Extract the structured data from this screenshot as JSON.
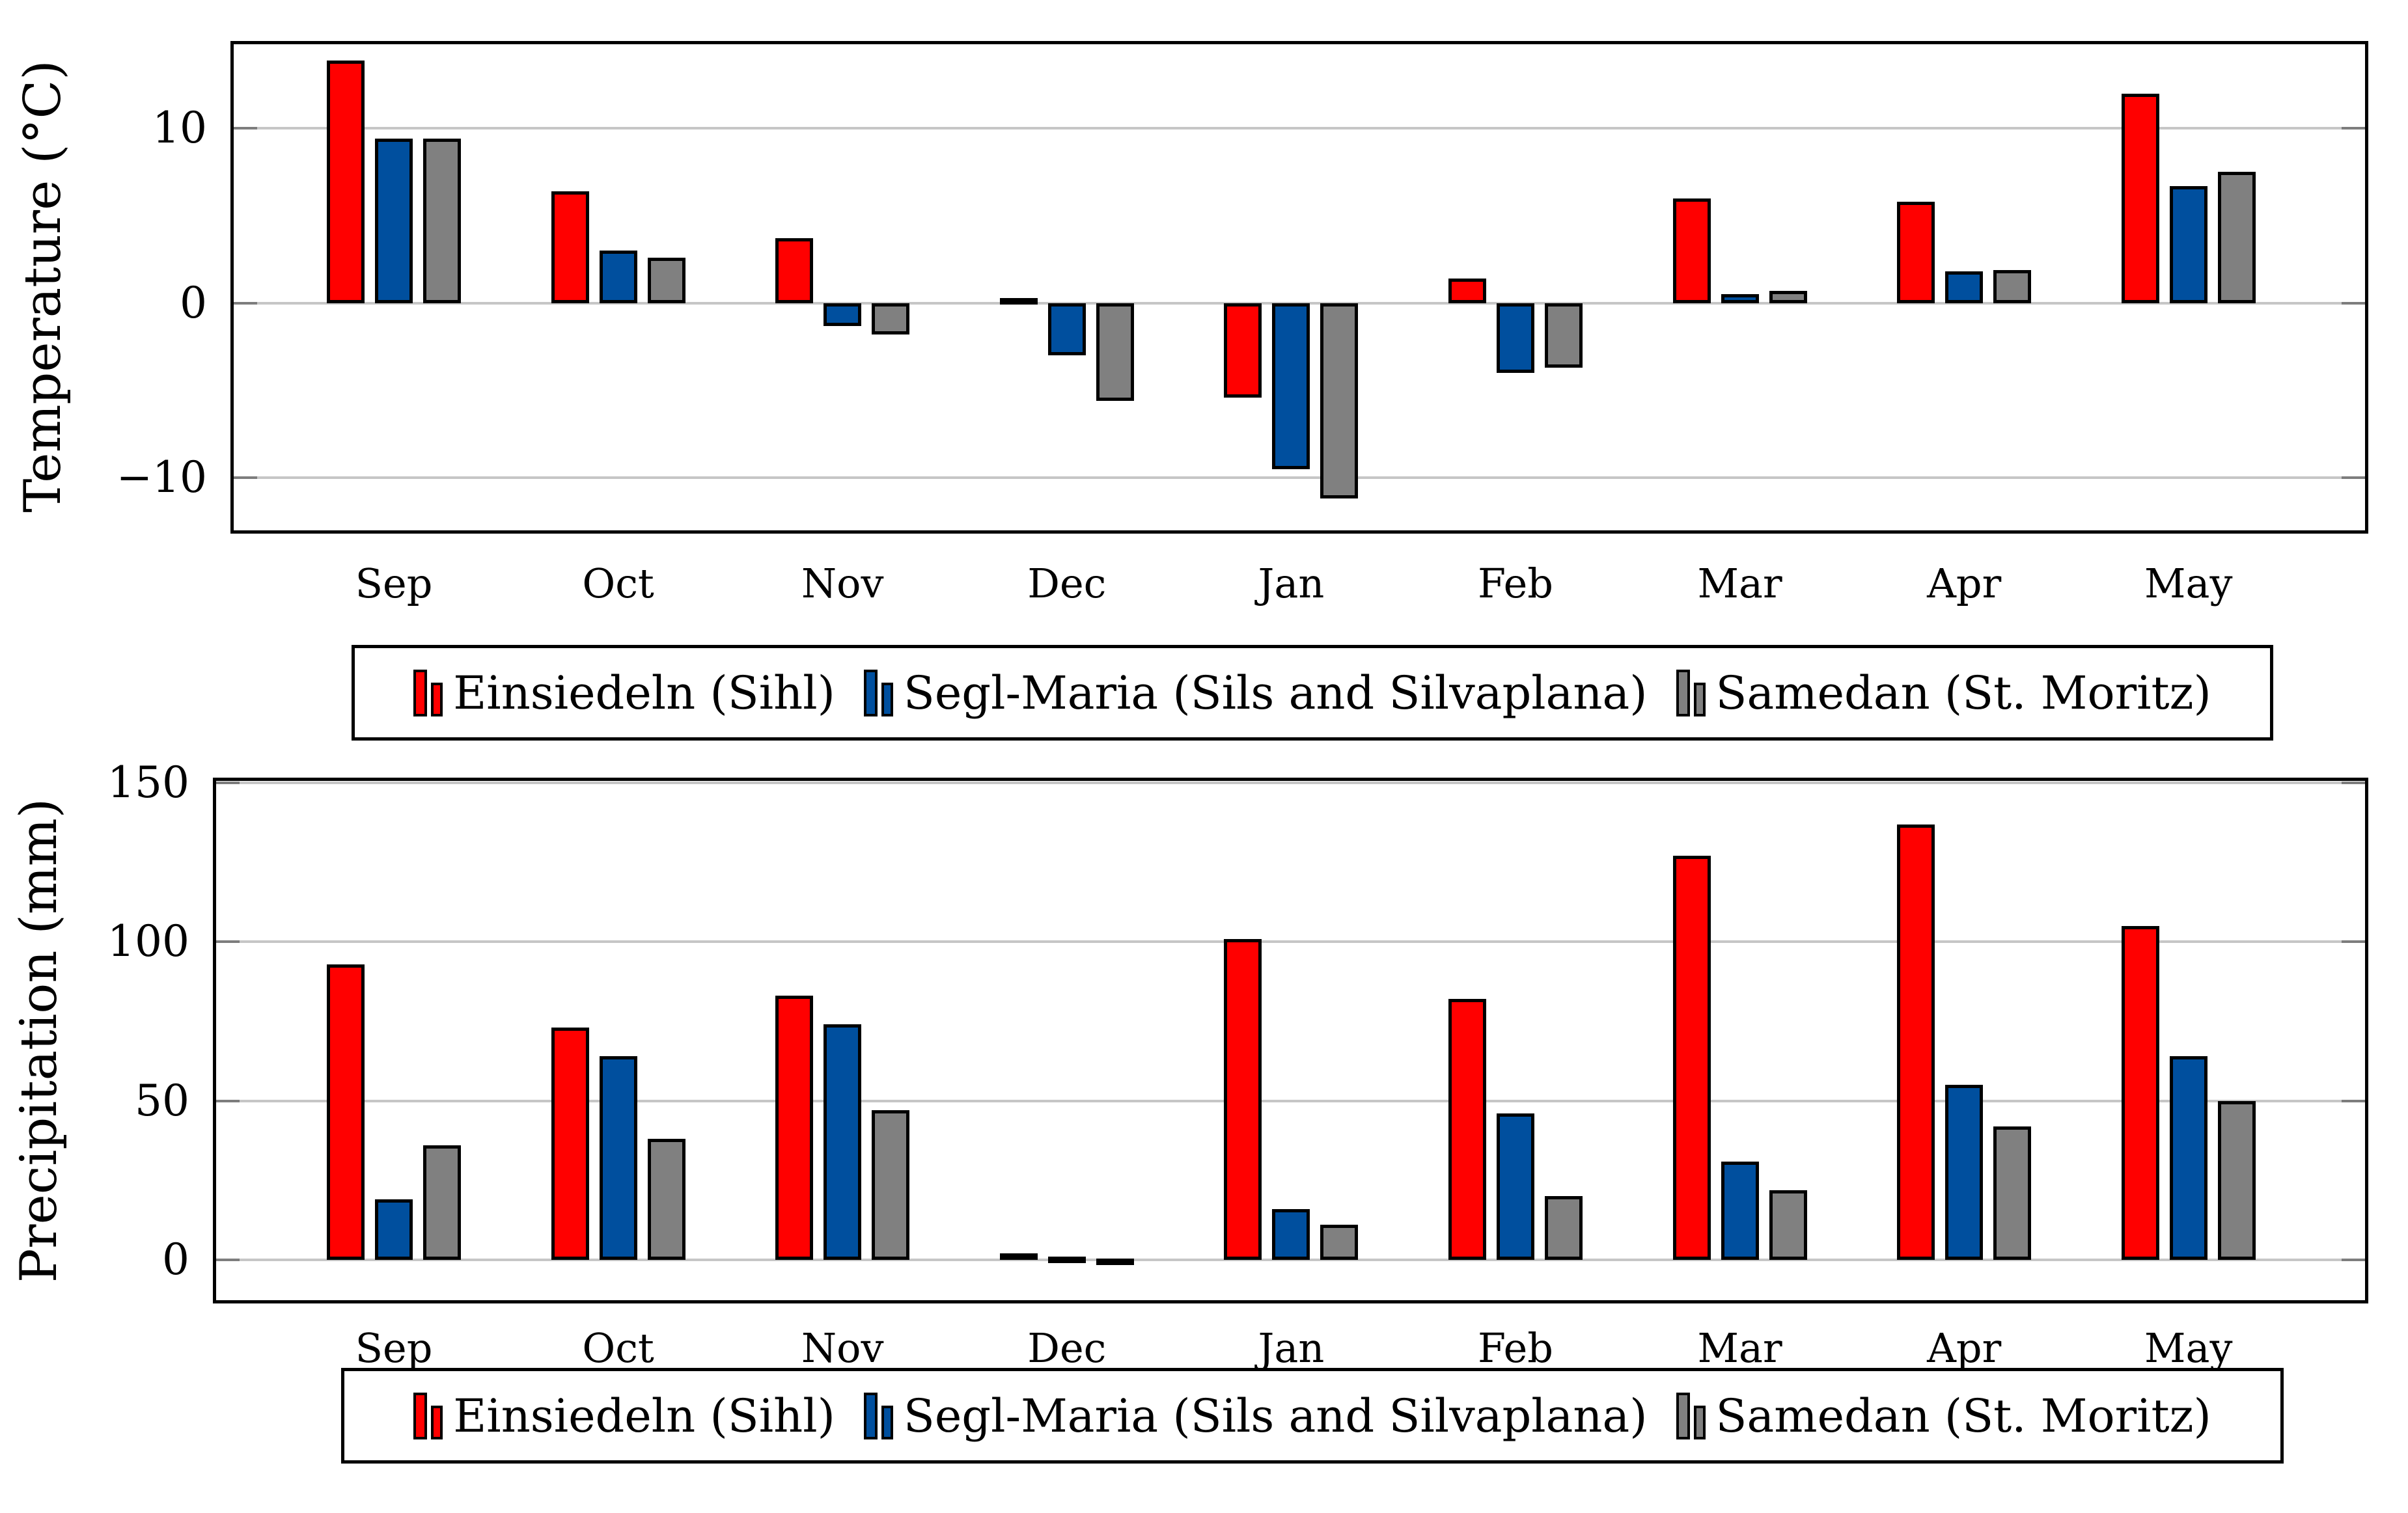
{
  "chart_data": [
    {
      "type": "bar",
      "title": "",
      "ylabel": "Temperature (°C)",
      "xlabel": "",
      "categories": [
        "Sep",
        "Oct",
        "Nov",
        "Dec",
        "Jan",
        "Feb",
        "Mar",
        "Apr",
        "May"
      ],
      "series": [
        {
          "name": "Einsiedeln (Sihl)",
          "color": "#ff0000",
          "values": [
            13.9,
            6.4,
            3.7,
            0.3,
            -5.4,
            1.4,
            6.0,
            5.8,
            12.0
          ]
        },
        {
          "name": "Segl-Maria (Sils and Silvaplana)",
          "color": "#004f9e",
          "values": [
            9.4,
            3.0,
            -1.3,
            -3.0,
            -9.5,
            -4.0,
            0.5,
            1.8,
            6.7
          ]
        },
        {
          "name": "Samedan (St. Moritz)",
          "color": "#808080",
          "values": [
            9.4,
            2.6,
            -1.8,
            -5.6,
            -11.2,
            -3.7,
            0.7,
            1.9,
            7.5
          ]
        }
      ],
      "yticks": [
        10,
        0,
        -10
      ],
      "ylim": [
        -13.2,
        15.0
      ],
      "grid": true,
      "legend_position": "below"
    },
    {
      "type": "bar",
      "title": "",
      "ylabel": "Precipitation (mm)",
      "xlabel": "",
      "categories": [
        "Sep",
        "Oct",
        "Nov",
        "Dec",
        "Jan",
        "Feb",
        "Mar",
        "Apr",
        "May"
      ],
      "series": [
        {
          "name": "Einsiedeln (Sihl)",
          "color": "#ff0000",
          "values": [
            93,
            73,
            83,
            2,
            101,
            82,
            127,
            137,
            105
          ]
        },
        {
          "name": "Segl-Maria (Sils and Silvaplana)",
          "color": "#004f9e",
          "values": [
            19,
            64,
            74,
            1,
            16,
            46,
            31,
            55,
            64
          ]
        },
        {
          "name": "Samedan (St. Moritz)",
          "color": "#808080",
          "values": [
            36,
            38,
            47,
            0.5,
            11,
            20,
            22,
            42,
            50
          ]
        }
      ],
      "yticks": [
        150,
        100,
        50,
        0
      ],
      "ylim": [
        -13.7,
        151.7
      ],
      "grid": true,
      "legend_position": "below"
    }
  ]
}
